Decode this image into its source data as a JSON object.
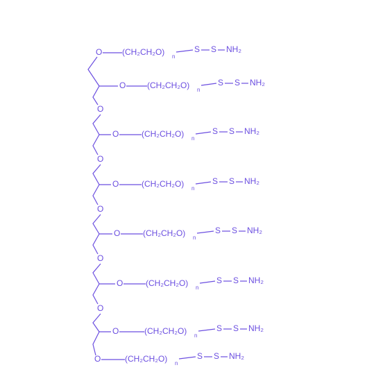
{
  "arms": [
    {
      "oxygen": "O",
      "peg": "(CH₂CH₂O)",
      "n": "n",
      "s1": "S",
      "s2": "S",
      "amine": "NH₂"
    },
    {
      "oxygen": "O",
      "peg": "(CH₂CH₂O)",
      "n": "n",
      "s1": "S",
      "s2": "S",
      "amine": "NH₂"
    },
    {
      "oxygen": "O",
      "peg": "(CH₂CH₂O)",
      "n": "n",
      "s1": "S",
      "s2": "S",
      "amine": "NH₂"
    },
    {
      "oxygen": "O",
      "peg": "(CH₂CH₂O)",
      "n": "n",
      "s1": "S",
      "s2": "S",
      "amine": "NH₂"
    },
    {
      "oxygen": "O",
      "peg": "(CH₂CH₂O)",
      "n": "n",
      "s1": "S",
      "s2": "S",
      "amine": "NH₂"
    },
    {
      "oxygen": "O",
      "peg": "(CH₂CH₂O)",
      "n": "n",
      "s1": "S",
      "s2": "S",
      "amine": "NH₂"
    },
    {
      "oxygen": "O",
      "peg": "(CH₂CH₂O)",
      "n": "n",
      "s1": "S",
      "s2": "S",
      "amine": "NH₂"
    },
    {
      "oxygen": "O",
      "peg": "(CH₂CH₂O)",
      "n": "n",
      "s1": "S",
      "s2": "S",
      "amine": "NH₂"
    }
  ],
  "backbone_oxygens": [
    "O",
    "O",
    "O",
    "O",
    "O"
  ]
}
